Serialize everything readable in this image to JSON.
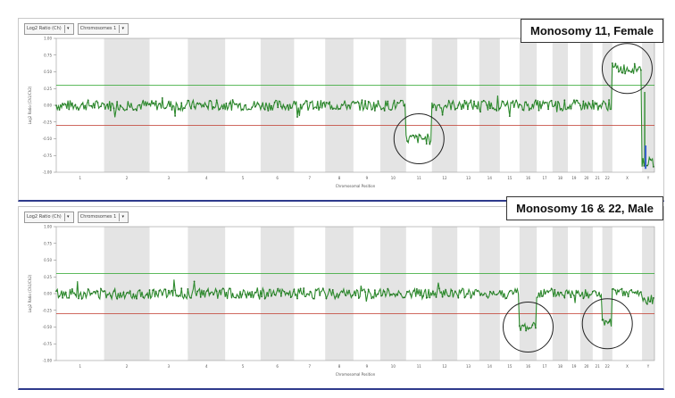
{
  "panels": [
    {
      "id": "top",
      "toolbar": {
        "ratio_select": "Log2 Ratio (Ch)",
        "chrom_select": "Chromosomes 1"
      },
      "callout": "Monosomy 11, Female"
    },
    {
      "id": "bottom",
      "toolbar": {
        "ratio_select": "Log2 Ratio (Ch)",
        "chrom_select": "Chromosomes 1"
      },
      "callout": "Monosomy 16 & 22, Male"
    }
  ],
  "colors": {
    "series": "#2e8b2e",
    "threshold_upper": "#2aa52a",
    "threshold_lower": "#c0392b",
    "band": "#e4e4e4",
    "baseline": "#3a5fcf",
    "circle": "#222222",
    "frame_bottom": "#2e3a8c"
  },
  "chart_data": [
    {
      "type": "scatter",
      "title": "Monosomy 11, Female",
      "xlabel": "Chromosomal Position",
      "ylabel": "Log2 Ratio (Ch1/Ch2)",
      "ylim": [
        -1.0,
        1.0
      ],
      "yticks": [
        1.0,
        0.75,
        0.5,
        0.25,
        0.0,
        -0.25,
        -0.5,
        -0.75,
        -1.0
      ],
      "xticks": [
        "1",
        "2",
        "3",
        "4",
        "5",
        "6",
        "7",
        "8",
        "9",
        "10",
        "11",
        "12",
        "13",
        "14",
        "15",
        "16",
        "17",
        "18",
        "19",
        "20",
        "21",
        "22",
        "X",
        "Y"
      ],
      "thresholds": [
        0.3,
        -0.3
      ],
      "grid": false,
      "segments": [
        {
          "chromosome": "1-10",
          "mean": 0.0
        },
        {
          "chromosome": "11",
          "mean": -0.5
        },
        {
          "chromosome": "12-22",
          "mean": 0.0
        },
        {
          "chromosome": "X",
          "mean": 0.55
        },
        {
          "chromosome": "Y",
          "mean": -0.85
        }
      ],
      "annotations": [
        "11",
        "X"
      ]
    },
    {
      "type": "scatter",
      "title": "Monosomy 16 & 22, Male",
      "xlabel": "Chromosomal Position",
      "ylabel": "Log2 Ratio (Ch1/Ch2)",
      "ylim": [
        -1.0,
        1.0
      ],
      "yticks": [
        1.0,
        0.75,
        0.5,
        0.25,
        0.0,
        -0.25,
        -0.5,
        -0.75,
        -1.0
      ],
      "xticks": [
        "1",
        "2",
        "3",
        "4",
        "5",
        "6",
        "7",
        "8",
        "9",
        "10",
        "11",
        "12",
        "13",
        "14",
        "15",
        "16",
        "17",
        "18",
        "19",
        "20",
        "21",
        "22",
        "X",
        "Y"
      ],
      "thresholds": [
        0.3,
        -0.3
      ],
      "grid": false,
      "segments": [
        {
          "chromosome": "1-15",
          "mean": 0.0
        },
        {
          "chromosome": "16",
          "mean": -0.5
        },
        {
          "chromosome": "17-21",
          "mean": 0.0
        },
        {
          "chromosome": "22",
          "mean": -0.45
        },
        {
          "chromosome": "X",
          "mean": 0.0
        },
        {
          "chromosome": "Y",
          "mean": -0.1
        }
      ],
      "annotations": [
        "16",
        "22"
      ]
    }
  ]
}
